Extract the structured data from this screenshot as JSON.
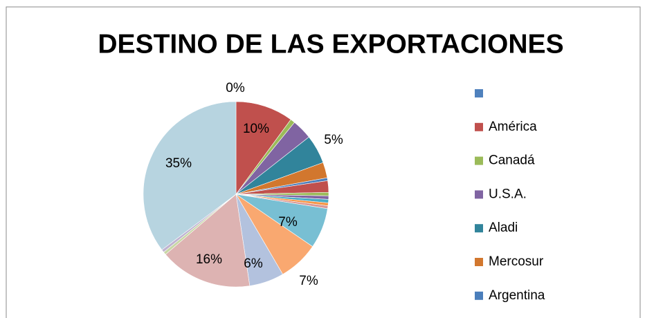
{
  "chart_data": {
    "type": "pie",
    "title": "DESTINO DE LAS EXPORTACIONES",
    "categories": [
      null,
      "América",
      "Canadá",
      "U.S.A.",
      "Aladi",
      "Mercosur",
      "Argentina",
      null,
      null,
      null,
      null,
      null,
      null,
      null,
      null,
      null,
      null,
      null,
      null,
      null
    ],
    "values": [
      0,
      10,
      0.8,
      3.5,
      5,
      2.7,
      0.5,
      2,
      0.6,
      0.6,
      0.6,
      0.5,
      0.5,
      7,
      7,
      6,
      16,
      0.5,
      0.5,
      35
    ],
    "value_labels": [
      "0%",
      "10%",
      null,
      null,
      "5%",
      null,
      null,
      null,
      null,
      null,
      null,
      null,
      null,
      "7%",
      "7%",
      "6%",
      "16%",
      null,
      null,
      "35%"
    ],
    "colors": [
      "#4f81bd",
      "#c0504d",
      "#9bbb59",
      "#8064a2",
      "#31849b",
      "#d2772e",
      "#4a7ebb",
      "#c0504d",
      "#9bbb59",
      "#8064a2",
      "#4bacc6",
      "#f79646",
      "#d99694",
      "#78bfd3",
      "#f9a870",
      "#b3c2de",
      "#ddb3b2",
      "#c8d7a5",
      "#bfb3d1",
      "#b7d4e0"
    ],
    "legend": "right"
  }
}
